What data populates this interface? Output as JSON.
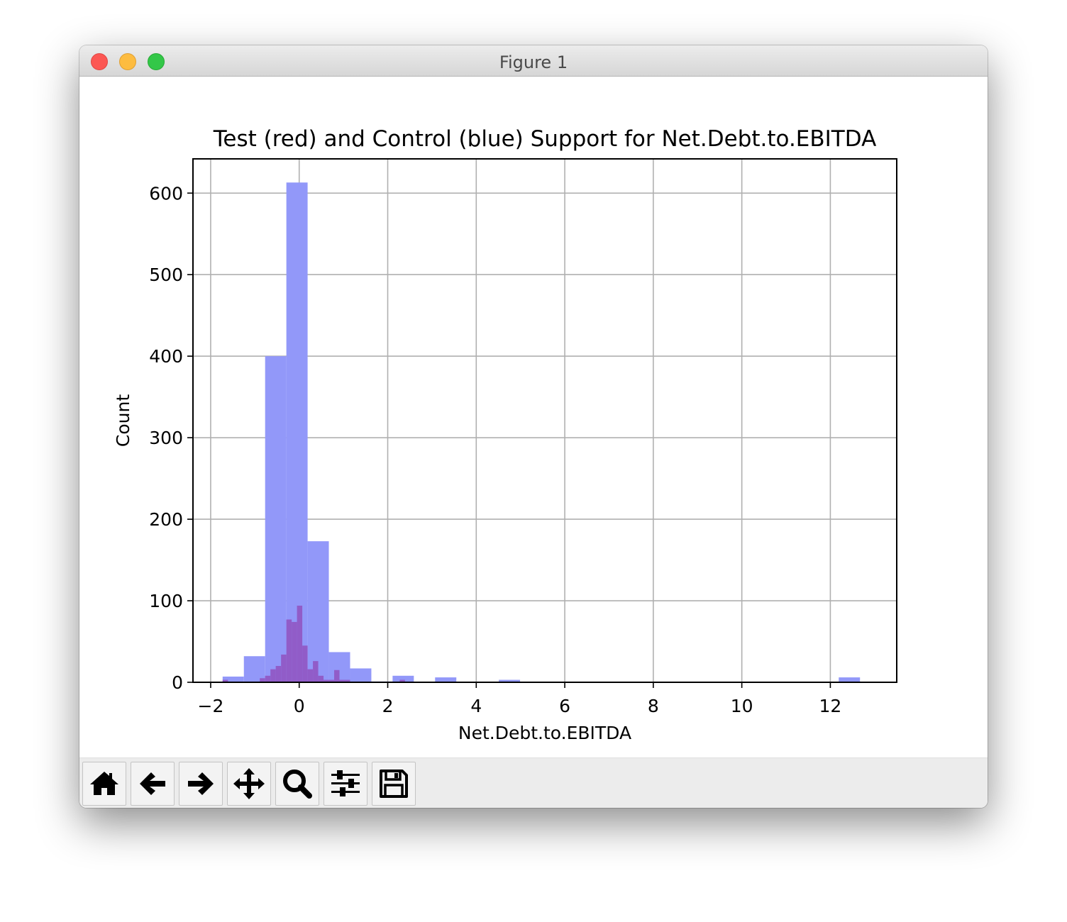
{
  "window": {
    "title": "Figure 1"
  },
  "toolbar": {
    "buttons": [
      {
        "name": "home-button",
        "icon": "home-icon"
      },
      {
        "name": "back-button",
        "icon": "arrow-left-icon"
      },
      {
        "name": "forward-button",
        "icon": "arrow-right-icon"
      },
      {
        "name": "pan-button",
        "icon": "move-icon"
      },
      {
        "name": "zoom-button",
        "icon": "magnifier-icon"
      },
      {
        "name": "configure-subplots-button",
        "icon": "sliders-icon"
      },
      {
        "name": "save-button",
        "icon": "floppy-disk-icon"
      }
    ]
  },
  "chart_data": {
    "type": "bar",
    "title": "Test (red) and Control (blue) Support for Net.Debt.to.EBITDA",
    "xlabel": "Net.Debt.to.EBITDA",
    "ylabel": "Count",
    "xlim": [
      -2.4,
      13.5
    ],
    "ylim": [
      0,
      642
    ],
    "xticks": [
      -2,
      0,
      2,
      4,
      6,
      8,
      10,
      12
    ],
    "xtick_labels": [
      "−2",
      "0",
      "2",
      "4",
      "6",
      "8",
      "10",
      "12"
    ],
    "yticks": [
      0,
      100,
      200,
      300,
      400,
      500,
      600
    ],
    "ytick_labels": [
      "0",
      "100",
      "200",
      "300",
      "400",
      "500",
      "600"
    ],
    "grid": true,
    "series": [
      {
        "color": "#9298f9",
        "bin_edges": [
          -1.73,
          -1.25,
          -0.77,
          -0.29,
          0.19,
          0.67,
          1.15,
          1.63,
          2.11,
          2.59,
          3.07,
          3.55,
          4.03,
          4.51,
          4.99,
          5.47,
          5.95,
          6.43,
          6.91,
          7.39,
          7.87,
          8.35,
          8.83,
          9.31,
          9.79,
          10.27,
          10.75,
          11.23,
          11.71,
          12.19,
          12.67
        ],
        "counts": [
          7,
          32,
          400,
          613,
          173,
          37,
          17,
          1,
          8,
          0,
          6,
          0,
          0,
          3,
          0,
          0,
          0,
          0,
          0,
          0,
          0,
          0,
          0,
          0,
          0,
          0,
          0,
          0,
          0,
          6
        ]
      },
      {
        "color": "#915cc8",
        "bin_edges": [
          -1.73,
          -1.61,
          -1.49,
          -1.37,
          -1.25,
          -1.13,
          -1.01,
          -0.89,
          -0.77,
          -0.65,
          -0.53,
          -0.41,
          -0.29,
          -0.17,
          -0.05,
          0.07,
          0.19,
          0.31,
          0.43,
          0.55,
          0.67,
          0.79,
          0.91,
          1.03,
          1.15,
          1.27,
          2.27,
          2.39,
          2.51
        ],
        "counts": [
          3,
          0,
          0,
          0,
          0,
          0,
          0,
          5,
          8,
          16,
          20,
          34,
          77,
          74,
          94,
          45,
          16,
          26,
          8,
          3,
          3,
          15,
          3,
          3,
          0,
          0,
          3,
          0
        ]
      }
    ]
  }
}
